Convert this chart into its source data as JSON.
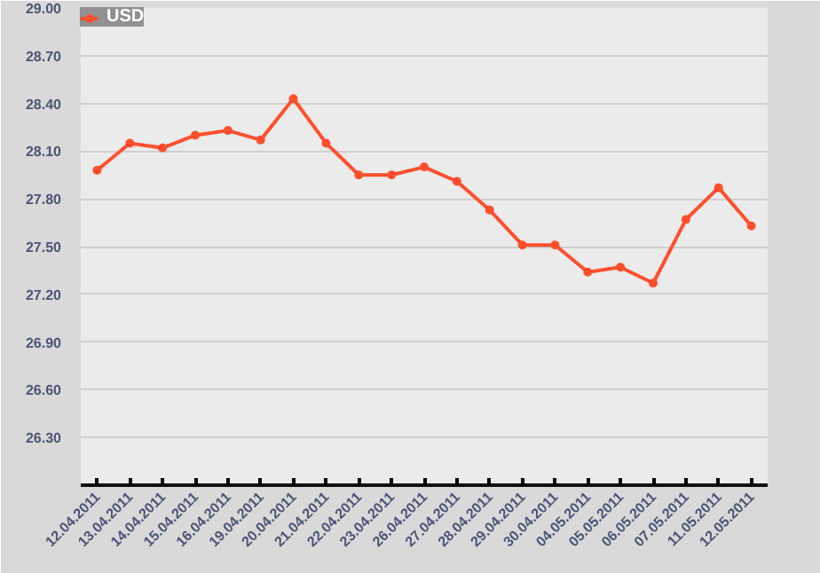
{
  "chart_data": {
    "type": "line",
    "categories": [
      "12.04.2011",
      "13.04.2011",
      "14.04.2011",
      "15.04.2011",
      "16.04.2011",
      "19.04.2011",
      "20.04.2011",
      "21.04.2011",
      "22.04.2011",
      "23.04.2011",
      "26.04.2011",
      "27.04.2011",
      "28.04.2011",
      "29.04.2011",
      "30.04.2011",
      "04.05.2011",
      "05.05.2011",
      "06.05.2011",
      "07.05.2011",
      "11.05.2011",
      "12.05.2011"
    ],
    "series": [
      {
        "name": "USD",
        "color": "#ff4f2b",
        "values": [
          27.98,
          28.15,
          28.12,
          28.2,
          28.23,
          28.17,
          28.43,
          28.15,
          27.95,
          27.95,
          28.0,
          27.91,
          27.73,
          27.51,
          27.51,
          27.34,
          27.37,
          27.27,
          27.67,
          27.87,
          27.63
        ]
      }
    ],
    "ylim": [
      26.0,
      29.0
    ],
    "yticks": [
      {
        "value": 26.3,
        "label": "26.30"
      },
      {
        "value": 26.6,
        "label": "26.60"
      },
      {
        "value": 26.9,
        "label": "26.90"
      },
      {
        "value": 27.2,
        "label": "27.20"
      },
      {
        "value": 27.5,
        "label": "27.50"
      },
      {
        "value": 27.8,
        "label": "27.80"
      },
      {
        "value": 28.1,
        "label": "28.10"
      },
      {
        "value": 28.4,
        "label": "28.40"
      },
      {
        "value": 28.7,
        "label": "28.70"
      },
      {
        "value": 29.0,
        "label": "29.00"
      }
    ],
    "grid": "y",
    "legend": "top left",
    "marker": "circle",
    "line_style": "solid"
  }
}
